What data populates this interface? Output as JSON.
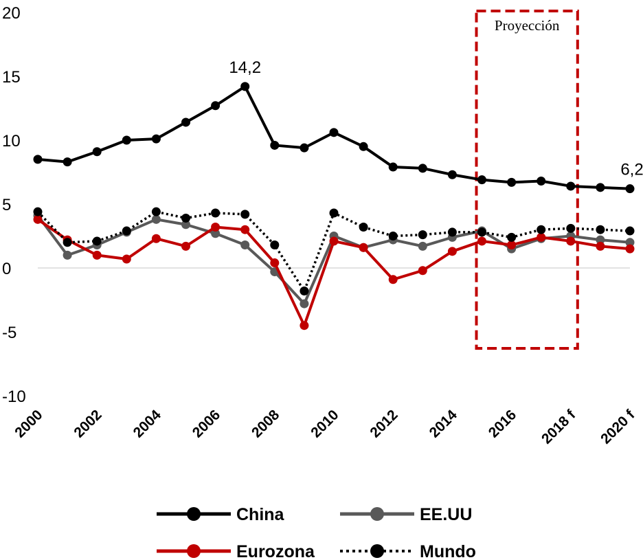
{
  "chart_data": {
    "type": "line",
    "x": [
      "2000",
      "2001",
      "2002",
      "2003",
      "2004",
      "2005",
      "2006",
      "2007",
      "2008",
      "2009",
      "2010",
      "2011",
      "2012",
      "2013",
      "2014",
      "2015",
      "2016",
      "2017",
      "2018 f",
      "2019 f",
      "2020 f"
    ],
    "x_tick_labels": [
      "2000",
      "2002",
      "2004",
      "2006",
      "2008",
      "2010",
      "2012",
      "2014",
      "2016",
      "2018 f",
      "2020 f"
    ],
    "ylim": [
      -10,
      20
    ],
    "y_ticks": [
      20,
      15,
      10,
      5,
      0,
      -5,
      -10
    ],
    "grid": false,
    "baseline": 0,
    "legend_position": "bottom",
    "series": [
      {
        "name": "China",
        "color": "#000000",
        "style": "solid",
        "values": [
          8.5,
          8.3,
          9.1,
          10.0,
          10.1,
          11.4,
          12.7,
          14.2,
          9.6,
          9.4,
          10.6,
          9.5,
          7.9,
          7.8,
          7.3,
          6.9,
          6.7,
          6.8,
          6.4,
          6.3,
          6.2
        ]
      },
      {
        "name": "EE.UU",
        "color": "#595959",
        "style": "solid",
        "values": [
          4.1,
          1.0,
          1.8,
          2.8,
          3.8,
          3.4,
          2.7,
          1.8,
          -0.3,
          -2.8,
          2.5,
          1.6,
          2.2,
          1.7,
          2.4,
          2.9,
          1.5,
          2.3,
          2.5,
          2.2,
          2.0
        ]
      },
      {
        "name": "Eurozona",
        "color": "#c00000",
        "style": "solid",
        "values": [
          3.8,
          2.2,
          1.0,
          0.7,
          2.3,
          1.7,
          3.2,
          3.0,
          0.4,
          -4.5,
          2.1,
          1.6,
          -0.9,
          -0.2,
          1.3,
          2.1,
          1.8,
          2.4,
          2.1,
          1.7,
          1.5
        ]
      },
      {
        "name": "Mundo",
        "color": "#000000",
        "style": "dotted",
        "values": [
          4.4,
          2.0,
          2.1,
          2.9,
          4.4,
          3.9,
          4.3,
          4.2,
          1.8,
          -1.8,
          4.3,
          3.2,
          2.5,
          2.6,
          2.8,
          2.8,
          2.4,
          3.0,
          3.1,
          3.0,
          2.9
        ]
      }
    ],
    "data_labels": [
      {
        "series": "China",
        "index": 7,
        "text": "14,2"
      },
      {
        "series": "China",
        "index": 20,
        "text": "6,2"
      }
    ],
    "annotation": {
      "label": "Proyección",
      "x_from": "2015",
      "x_to": "2018 f",
      "color": "#c00000"
    }
  }
}
